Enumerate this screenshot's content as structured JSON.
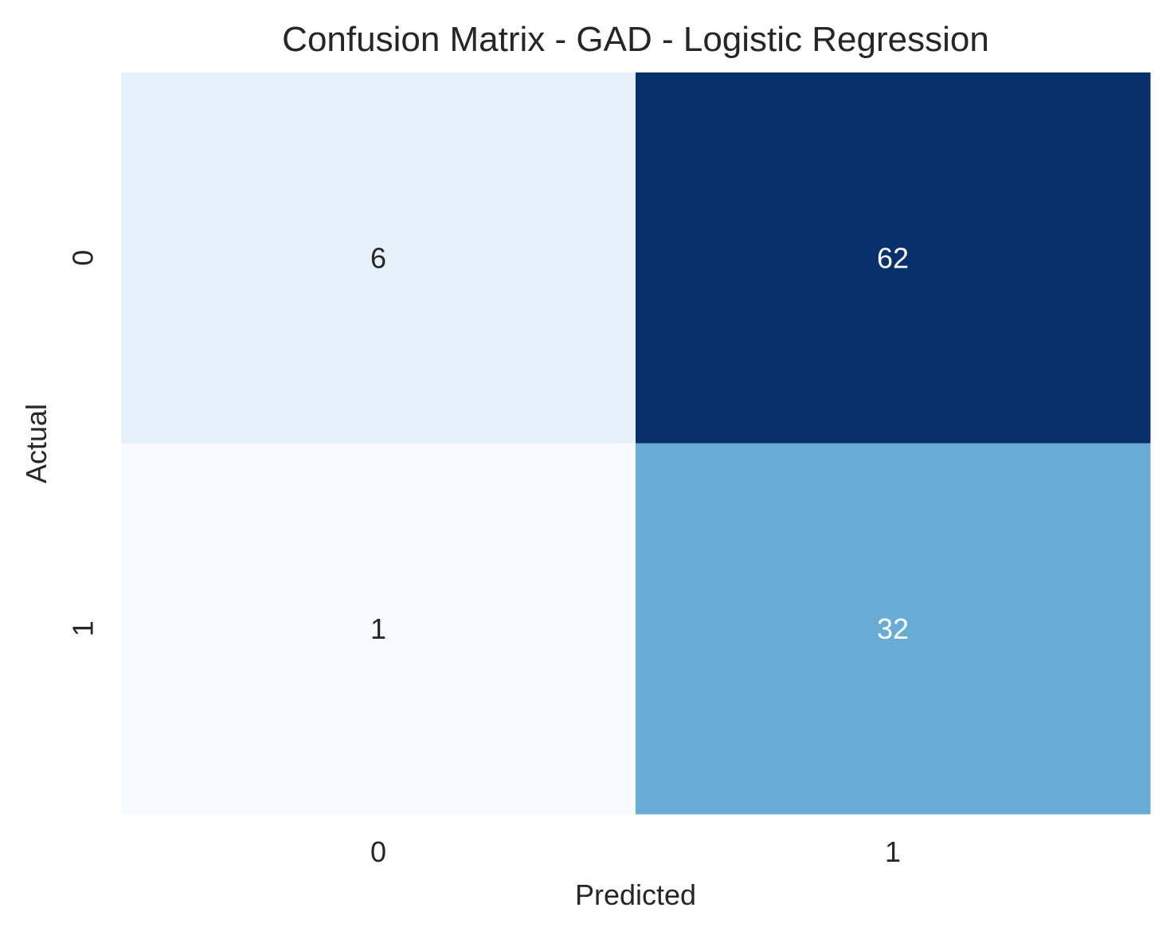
{
  "chart_data": {
    "type": "heatmap",
    "title": "Confusion Matrix - GAD - Logistic Regression",
    "xlabel": "Predicted",
    "ylabel": "Actual",
    "x_categories": [
      "0",
      "1"
    ],
    "y_categories": [
      "0",
      "1"
    ],
    "values": [
      [
        6,
        62
      ],
      [
        1,
        32
      ]
    ],
    "colormap": "Blues",
    "color_range": [
      1,
      62
    ],
    "colorbar": false,
    "grid": false,
    "annotations": true,
    "colors": {
      "low": "#f7fbff",
      "high": "#08306b",
      "text_dark": "#262626",
      "text_light": "#ffffff"
    }
  }
}
